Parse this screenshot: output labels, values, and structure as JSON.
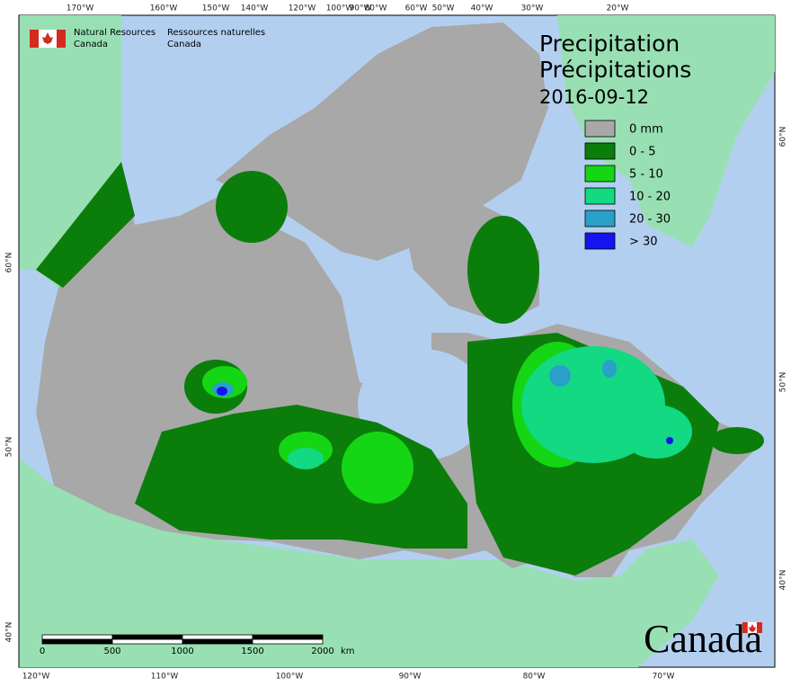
{
  "header": {
    "en_line1": "Natural Resources",
    "en_line2": "Canada",
    "fr_line1": "Ressources naturelles",
    "fr_line2": "Canada"
  },
  "title": {
    "en": "Precipitation",
    "fr": "Précipitations",
    "date": "2016-09-12"
  },
  "legend": [
    {
      "label": "0 mm",
      "color": "#a8a8a8"
    },
    {
      "label": "0 - 5",
      "color": "#0b7d0b"
    },
    {
      "label": "5 - 10",
      "color": "#14d614"
    },
    {
      "label": "10 - 20",
      "color": "#12d982"
    },
    {
      "label": "20 - 30",
      "color": "#2aa0c8"
    },
    {
      "label": "> 30",
      "color": "#1414f0"
    }
  ],
  "graticule": {
    "top": [
      "170°W",
      "160°W",
      "150°W",
      "140°W",
      "120°W",
      "100°W",
      "90°W",
      "80°W",
      "60°W",
      "50°W",
      "40°W",
      "30°W",
      "20°W"
    ],
    "bottom": [
      "120°W",
      "110°W",
      "100°W",
      "90°W",
      "80°W",
      "70°W"
    ],
    "left": [
      "60°N",
      "50°N",
      "40°N"
    ],
    "right": [
      "60°N",
      "50°N",
      "40°N"
    ]
  },
  "scale_bar": {
    "labels": [
      "0",
      "500",
      "1000",
      "1500",
      "2000"
    ],
    "unit": "km"
  },
  "wordmark": "Canada"
}
